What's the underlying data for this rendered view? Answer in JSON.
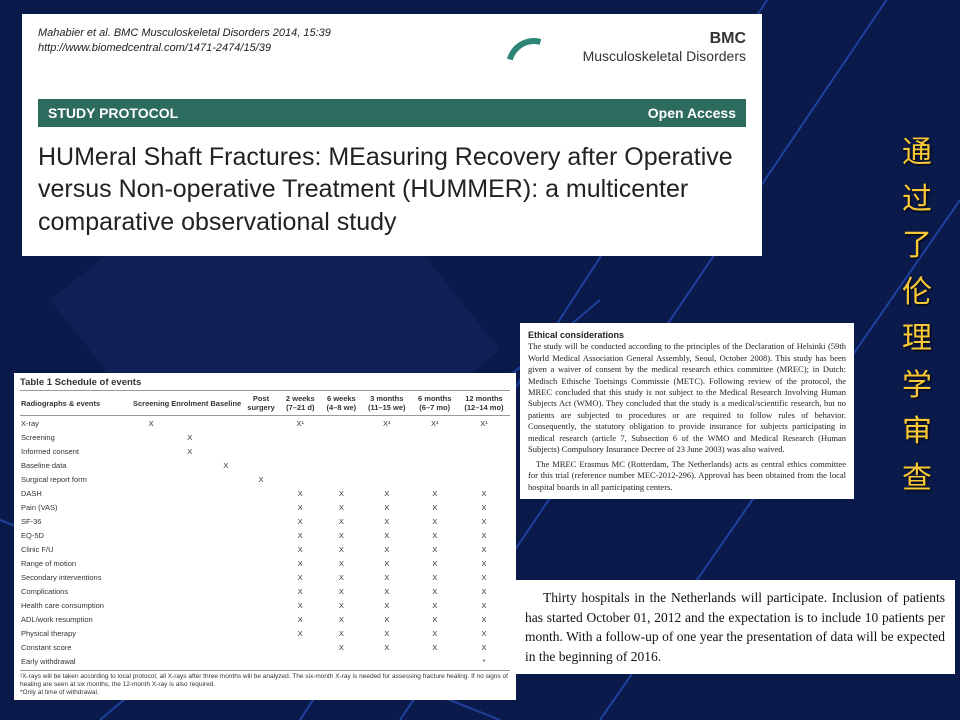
{
  "bg": {
    "color": "#0a1a4a",
    "line_color": "#2040a0",
    "line_width": 2
  },
  "header": {
    "citation_line1": "Mahabier et al. BMC Musculoskeletal Disorders 2014, 15:39",
    "citation_line2": "http://www.biomedcentral.com/1471-2474/15/39",
    "logo_bmc": "BMC",
    "logo_journal": "Musculoskeletal Disorders",
    "protocol_label": "STUDY PROTOCOL",
    "open_access": "Open Access",
    "title": "HUMeral Shaft Fractures: MEasuring Recovery after Operative versus Non-operative Treatment (HUMMER): a multicenter comparative observational study"
  },
  "table": {
    "caption": "Table 1 Schedule of events",
    "columns": [
      "Radiographs & events",
      "Screening",
      "Enrolment",
      "Baseline",
      "Post surgery",
      "2 weeks (7–21 d)",
      "6 weeks (4–8 we)",
      "3 months (11–15 we)",
      "6 months (6–7 mo)",
      "12 months (12–14 mo)"
    ],
    "rows": [
      [
        "X-ray",
        "X",
        "",
        "",
        "",
        "X¹",
        "",
        "X¹",
        "X¹",
        "X¹"
      ],
      [
        "Screening",
        "",
        "X",
        "",
        "",
        "",
        "",
        "",
        "",
        ""
      ],
      [
        "Informed consent",
        "",
        "X",
        "",
        "",
        "",
        "",
        "",
        "",
        ""
      ],
      [
        "Baseline data",
        "",
        "",
        "X",
        "",
        "",
        "",
        "",
        "",
        ""
      ],
      [
        "Surgical report form",
        "",
        "",
        "",
        "X",
        "",
        "",
        "",
        "",
        ""
      ],
      [
        "DASH",
        "",
        "",
        "",
        "",
        "X",
        "X",
        "X",
        "X",
        "X"
      ],
      [
        "Pain (VAS)",
        "",
        "",
        "",
        "",
        "X",
        "X",
        "X",
        "X",
        "X"
      ],
      [
        "SF-36",
        "",
        "",
        "",
        "",
        "X",
        "X",
        "X",
        "X",
        "X"
      ],
      [
        "EQ-5D",
        "",
        "",
        "",
        "",
        "X",
        "X",
        "X",
        "X",
        "X"
      ],
      [
        "Clinic F/U",
        "",
        "",
        "",
        "",
        "X",
        "X",
        "X",
        "X",
        "X"
      ],
      [
        "Range of motion",
        "",
        "",
        "",
        "",
        "X",
        "X",
        "X",
        "X",
        "X"
      ],
      [
        "Secondary interventions",
        "",
        "",
        "",
        "",
        "X",
        "X",
        "X",
        "X",
        "X"
      ],
      [
        "Complications",
        "",
        "",
        "",
        "",
        "X",
        "X",
        "X",
        "X",
        "X"
      ],
      [
        "Health care consumption",
        "",
        "",
        "",
        "",
        "X",
        "X",
        "X",
        "X",
        "X"
      ],
      [
        "ADL/work resumption",
        "",
        "",
        "",
        "",
        "X",
        "X",
        "X",
        "X",
        "X"
      ],
      [
        "Physical therapy",
        "",
        "",
        "",
        "",
        "X",
        "X",
        "X",
        "X",
        "X"
      ],
      [
        "Constant score",
        "",
        "",
        "",
        "",
        "",
        "X",
        "X",
        "X",
        "X"
      ],
      [
        "Early withdrawal",
        "",
        "",
        "",
        "",
        "",
        "",
        "",
        "",
        "*"
      ]
    ],
    "footnote1": "¹X-rays will be taken according to local protocol; all X-rays after three months will be analyzed. The six-month X-ray is needed for assessing fracture healing. If no signs of healing are seen at six months, the 12-month X-ray is also required.",
    "footnote2": "*Only at time of withdrawal."
  },
  "ethics": {
    "heading": "Ethical considerations",
    "para1": "The study will be conducted according to the principles of the Declaration of Helsinki (59th World Medical Association General Assembly, Seoul, October 2008). This study has been given a waiver of consent by the medical research ethics committee (MREC); in Dutch: Medisch Ethische Toetsings Commissie (METC). Following review of the protocol, the MREC concluded that this study is not subject to the Medical Research Involving Human Subjects Act (WMO). They concluded that the study is a medical/scientific research, but no patients are subjected to procedures or are required to follow rules of behavior. Consequently, the statutory obligation to provide insurance for subjects participating in medical research (article 7, Subsection 6 of the WMO and Medical Research (Human Subjects) Compulsory Insurance Decree of 23 June 2003) was also waived.",
    "para2": "The MREC Erasmus MC (Rotterdam, The Netherlands) acts as central ethics committee for this trial (reference number MEC-2012-296). Approval has been obtained from the local hospital boards in all participating centers."
  },
  "hospitals": {
    "text": "Thirty hospitals in the Netherlands will participate. Inclusion of patients has started October 01, 2012 and the expectation is to include 10 patients per month. With a follow-up of one year the presentation of data will be expected in the beginning of 2016."
  },
  "side_chinese": {
    "chars": [
      "通",
      "过",
      "了",
      "伦",
      "理",
      "学",
      "审",
      "查"
    ]
  }
}
